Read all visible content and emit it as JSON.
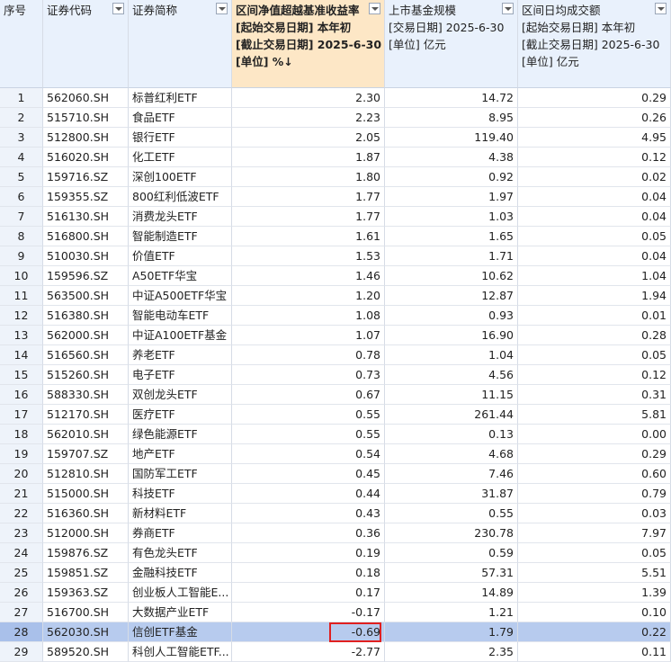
{
  "table": {
    "headers": [
      [
        "序号"
      ],
      [
        "证券代码"
      ],
      [
        "证券简称"
      ],
      [
        "区间净值超越基准收益率",
        "[起始交易日期] 本年初",
        "[截止交易日期] 2025-6-30",
        "[单位] %↓"
      ],
      [
        "上市基金规模",
        "[交易日期] 2025-6-30",
        "[单位] 亿元"
      ],
      [
        "区间日均成交额",
        "[起始交易日期] 本年初",
        "[截止交易日期] 2025-6-30",
        "[单位] 亿元"
      ]
    ],
    "rows": [
      [
        "1",
        "562060.SH",
        "标普红利ETF",
        "2.30",
        "14.72",
        "0.29"
      ],
      [
        "2",
        "515710.SH",
        "食品ETF",
        "2.23",
        "8.95",
        "0.26"
      ],
      [
        "3",
        "512800.SH",
        "银行ETF",
        "2.05",
        "119.40",
        "4.95"
      ],
      [
        "4",
        "516020.SH",
        "化工ETF",
        "1.87",
        "4.38",
        "0.12"
      ],
      [
        "5",
        "159716.SZ",
        "深创100ETF",
        "1.80",
        "0.92",
        "0.02"
      ],
      [
        "6",
        "159355.SZ",
        "800红利低波ETF",
        "1.77",
        "1.97",
        "0.04"
      ],
      [
        "7",
        "516130.SH",
        "消费龙头ETF",
        "1.77",
        "1.03",
        "0.04"
      ],
      [
        "8",
        "516800.SH",
        "智能制造ETF",
        "1.61",
        "1.65",
        "0.05"
      ],
      [
        "9",
        "510030.SH",
        "价值ETF",
        "1.53",
        "1.71",
        "0.04"
      ],
      [
        "10",
        "159596.SZ",
        "A50ETF华宝",
        "1.46",
        "10.62",
        "1.04"
      ],
      [
        "11",
        "563500.SH",
        "中证A500ETF华宝",
        "1.20",
        "12.87",
        "1.94"
      ],
      [
        "12",
        "516380.SH",
        "智能电动车ETF",
        "1.08",
        "0.93",
        "0.01"
      ],
      [
        "13",
        "562000.SH",
        "中证A100ETF基金",
        "1.07",
        "16.90",
        "0.28"
      ],
      [
        "14",
        "516560.SH",
        "养老ETF",
        "0.78",
        "1.04",
        "0.05"
      ],
      [
        "15",
        "515260.SH",
        "电子ETF",
        "0.73",
        "4.56",
        "0.12"
      ],
      [
        "16",
        "588330.SH",
        "双创龙头ETF",
        "0.67",
        "11.15",
        "0.31"
      ],
      [
        "17",
        "512170.SH",
        "医疗ETF",
        "0.55",
        "261.44",
        "5.81"
      ],
      [
        "18",
        "562010.SH",
        "绿色能源ETF",
        "0.55",
        "0.13",
        "0.00"
      ],
      [
        "19",
        "159707.SZ",
        "地产ETF",
        "0.54",
        "4.68",
        "0.29"
      ],
      [
        "20",
        "512810.SH",
        "国防军工ETF",
        "0.45",
        "7.46",
        "0.60"
      ],
      [
        "21",
        "515000.SH",
        "科技ETF",
        "0.44",
        "31.87",
        "0.79"
      ],
      [
        "22",
        "516360.SH",
        "新材料ETF",
        "0.43",
        "0.55",
        "0.03"
      ],
      [
        "23",
        "512000.SH",
        "券商ETF",
        "0.36",
        "230.78",
        "7.97"
      ],
      [
        "24",
        "159876.SZ",
        "有色龙头ETF",
        "0.19",
        "0.59",
        "0.05"
      ],
      [
        "25",
        "159851.SZ",
        "金融科技ETF",
        "0.18",
        "57.31",
        "5.51"
      ],
      [
        "26",
        "159363.SZ",
        "创业板人工智能E...",
        "0.17",
        "14.89",
        "1.39"
      ],
      [
        "27",
        "516700.SH",
        "大数据产业ETF",
        "-0.17",
        "1.21",
        "0.10"
      ],
      [
        "28",
        "562030.SH",
        "信创ETF基金",
        "-0.69",
        "1.79",
        "0.22"
      ],
      [
        "29",
        "589520.SH",
        "科创人工智能ETF...",
        "-2.77",
        "2.35",
        "0.11"
      ]
    ]
  }
}
